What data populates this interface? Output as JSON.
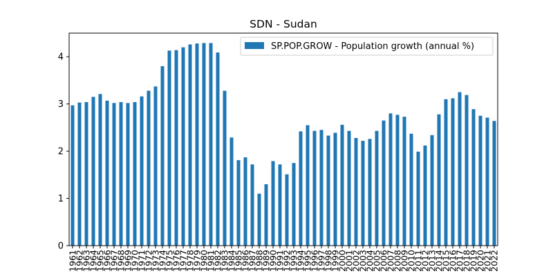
{
  "chart_data": {
    "type": "bar",
    "title": "SDN - Sudan",
    "xlabel": "",
    "ylabel": "",
    "ylim": [
      0,
      4.5
    ],
    "yticks": [
      "0",
      "1",
      "2",
      "3",
      "4"
    ],
    "grid": false,
    "legend_position": "top-right",
    "colors": {
      "bar": "#1f77b4",
      "axis": "#000000",
      "background": "#ffffff"
    },
    "categories": [
      "1961",
      "1962",
      "1963",
      "1964",
      "1965",
      "1966",
      "1967",
      "1968",
      "1969",
      "1970",
      "1971",
      "1972",
      "1973",
      "1974",
      "1975",
      "1976",
      "1977",
      "1978",
      "1979",
      "1980",
      "1981",
      "1982",
      "1983",
      "1984",
      "1985",
      "1986",
      "1987",
      "1988",
      "1989",
      "1990",
      "1991",
      "1992",
      "1993",
      "1994",
      "1995",
      "1996",
      "1997",
      "1998",
      "1999",
      "2000",
      "2001",
      "2002",
      "2003",
      "2004",
      "2005",
      "2006",
      "2007",
      "2008",
      "2009",
      "2010",
      "2011",
      "2012",
      "2013",
      "2014",
      "2015",
      "2016",
      "2017",
      "2018",
      "2019",
      "2020",
      "2021",
      "2022"
    ],
    "series": [
      {
        "name": "SP.POP.GROW - Population growth (annual %)",
        "values": [
          2.97,
          3.03,
          3.04,
          3.15,
          3.21,
          3.07,
          3.02,
          3.04,
          3.02,
          3.04,
          3.16,
          3.28,
          3.37,
          3.8,
          4.13,
          4.14,
          4.2,
          4.26,
          4.28,
          4.29,
          4.29,
          4.09,
          3.28,
          2.29,
          1.81,
          1.87,
          1.72,
          1.1,
          1.3,
          1.79,
          1.72,
          1.51,
          1.75,
          2.42,
          2.55,
          2.43,
          2.45,
          2.33,
          2.39,
          2.56,
          2.43,
          2.28,
          2.22,
          2.26,
          2.43,
          2.65,
          2.8,
          2.77,
          2.73,
          2.37,
          1.99,
          2.12,
          2.34,
          2.78,
          3.1,
          3.12,
          3.25,
          3.19,
          2.89,
          2.75,
          2.71,
          2.64
        ]
      }
    ]
  }
}
